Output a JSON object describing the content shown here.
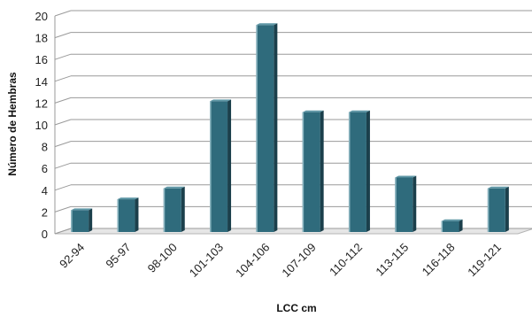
{
  "chart_data": {
    "type": "bar",
    "title": "",
    "xlabel": "LCC cm",
    "ylabel": "Número de Hembras",
    "ylim": [
      0,
      20
    ],
    "yticks": [
      0,
      2,
      4,
      6,
      8,
      10,
      12,
      14,
      16,
      18,
      20
    ],
    "categories": [
      "92-94",
      "95-97",
      "98-100",
      "101-103",
      "104-106",
      "107-109",
      "110-112",
      "113-115",
      "116-118",
      "119-121"
    ],
    "values": [
      2,
      3,
      4,
      12,
      19,
      11,
      11,
      5,
      1,
      4
    ],
    "grid": true,
    "legend": "none",
    "colors": {
      "bar_front": "#2f6b7c",
      "bar_side": "#1b3f4b",
      "bar_top": "#5f97a6",
      "grid": "#9a9a9a"
    }
  }
}
